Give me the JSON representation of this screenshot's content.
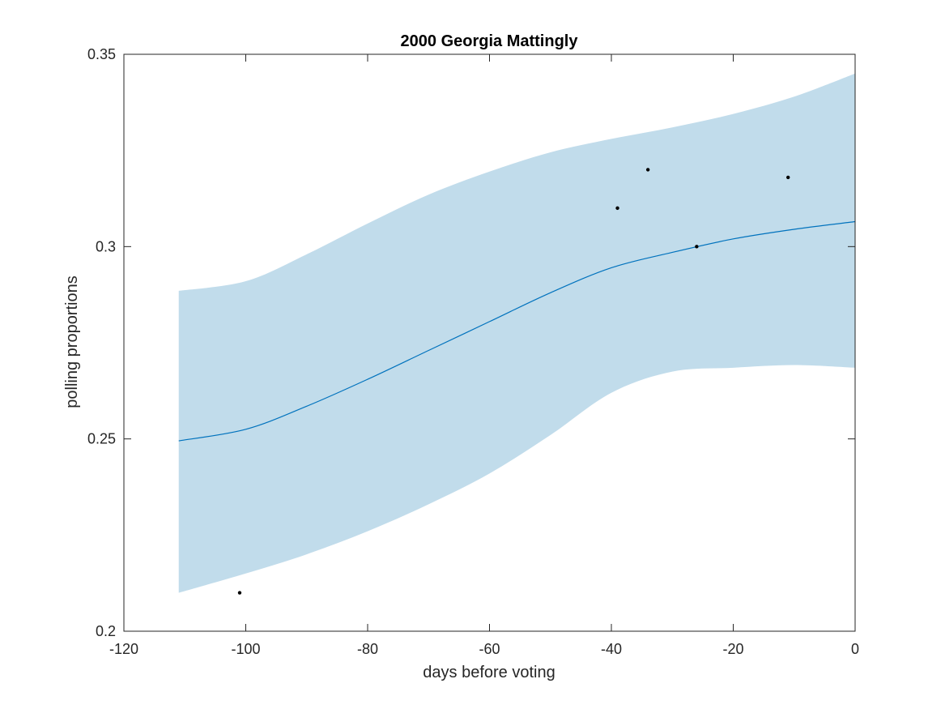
{
  "chart_data": {
    "type": "line",
    "title": "2000 Georgia Mattingly",
    "xlabel": "days before voting",
    "ylabel": "polling proportions",
    "xlim": [
      -120,
      0
    ],
    "ylim": [
      0.2,
      0.35
    ],
    "xticks": [
      -120,
      -100,
      -80,
      -60,
      -40,
      -20,
      0
    ],
    "xtick_labels": [
      "-120",
      "-100",
      "-80",
      "-60",
      "-40",
      "-20",
      "0"
    ],
    "yticks": [
      0.2,
      0.25,
      0.3,
      0.35
    ],
    "ytick_labels": [
      "0.2",
      "0.25",
      "0.3",
      "0.35"
    ],
    "grid": false,
    "colors": {
      "band": "#c1dceb",
      "line": "#0072bd",
      "points": "#000000",
      "axes": "#262626"
    },
    "series": [
      {
        "kind": "band",
        "x": [
          -111,
          -100,
          -90,
          -80,
          -70,
          -60,
          -50,
          -40,
          -30,
          -20,
          -10,
          0
        ],
        "lower": [
          0.21,
          0.215,
          0.22,
          0.226,
          0.233,
          0.241,
          0.251,
          0.262,
          0.2675,
          0.2685,
          0.2692,
          0.2685
        ],
        "upper": [
          0.2885,
          0.291,
          0.298,
          0.306,
          0.3135,
          0.3195,
          0.3245,
          0.328,
          0.331,
          0.3345,
          0.339,
          0.345
        ]
      },
      {
        "kind": "line",
        "x": [
          -111,
          -100,
          -90,
          -80,
          -70,
          -60,
          -50,
          -40,
          -30,
          -20,
          -10,
          0
        ],
        "y": [
          0.2495,
          0.2525,
          0.2585,
          0.2655,
          0.273,
          0.2805,
          0.288,
          0.2945,
          0.2985,
          0.302,
          0.3045,
          0.3065
        ]
      },
      {
        "kind": "scatter",
        "x": [
          -101,
          -39,
          -34,
          -26,
          -11
        ],
        "y": [
          0.21,
          0.31,
          0.32,
          0.3,
          0.318
        ]
      }
    ]
  }
}
